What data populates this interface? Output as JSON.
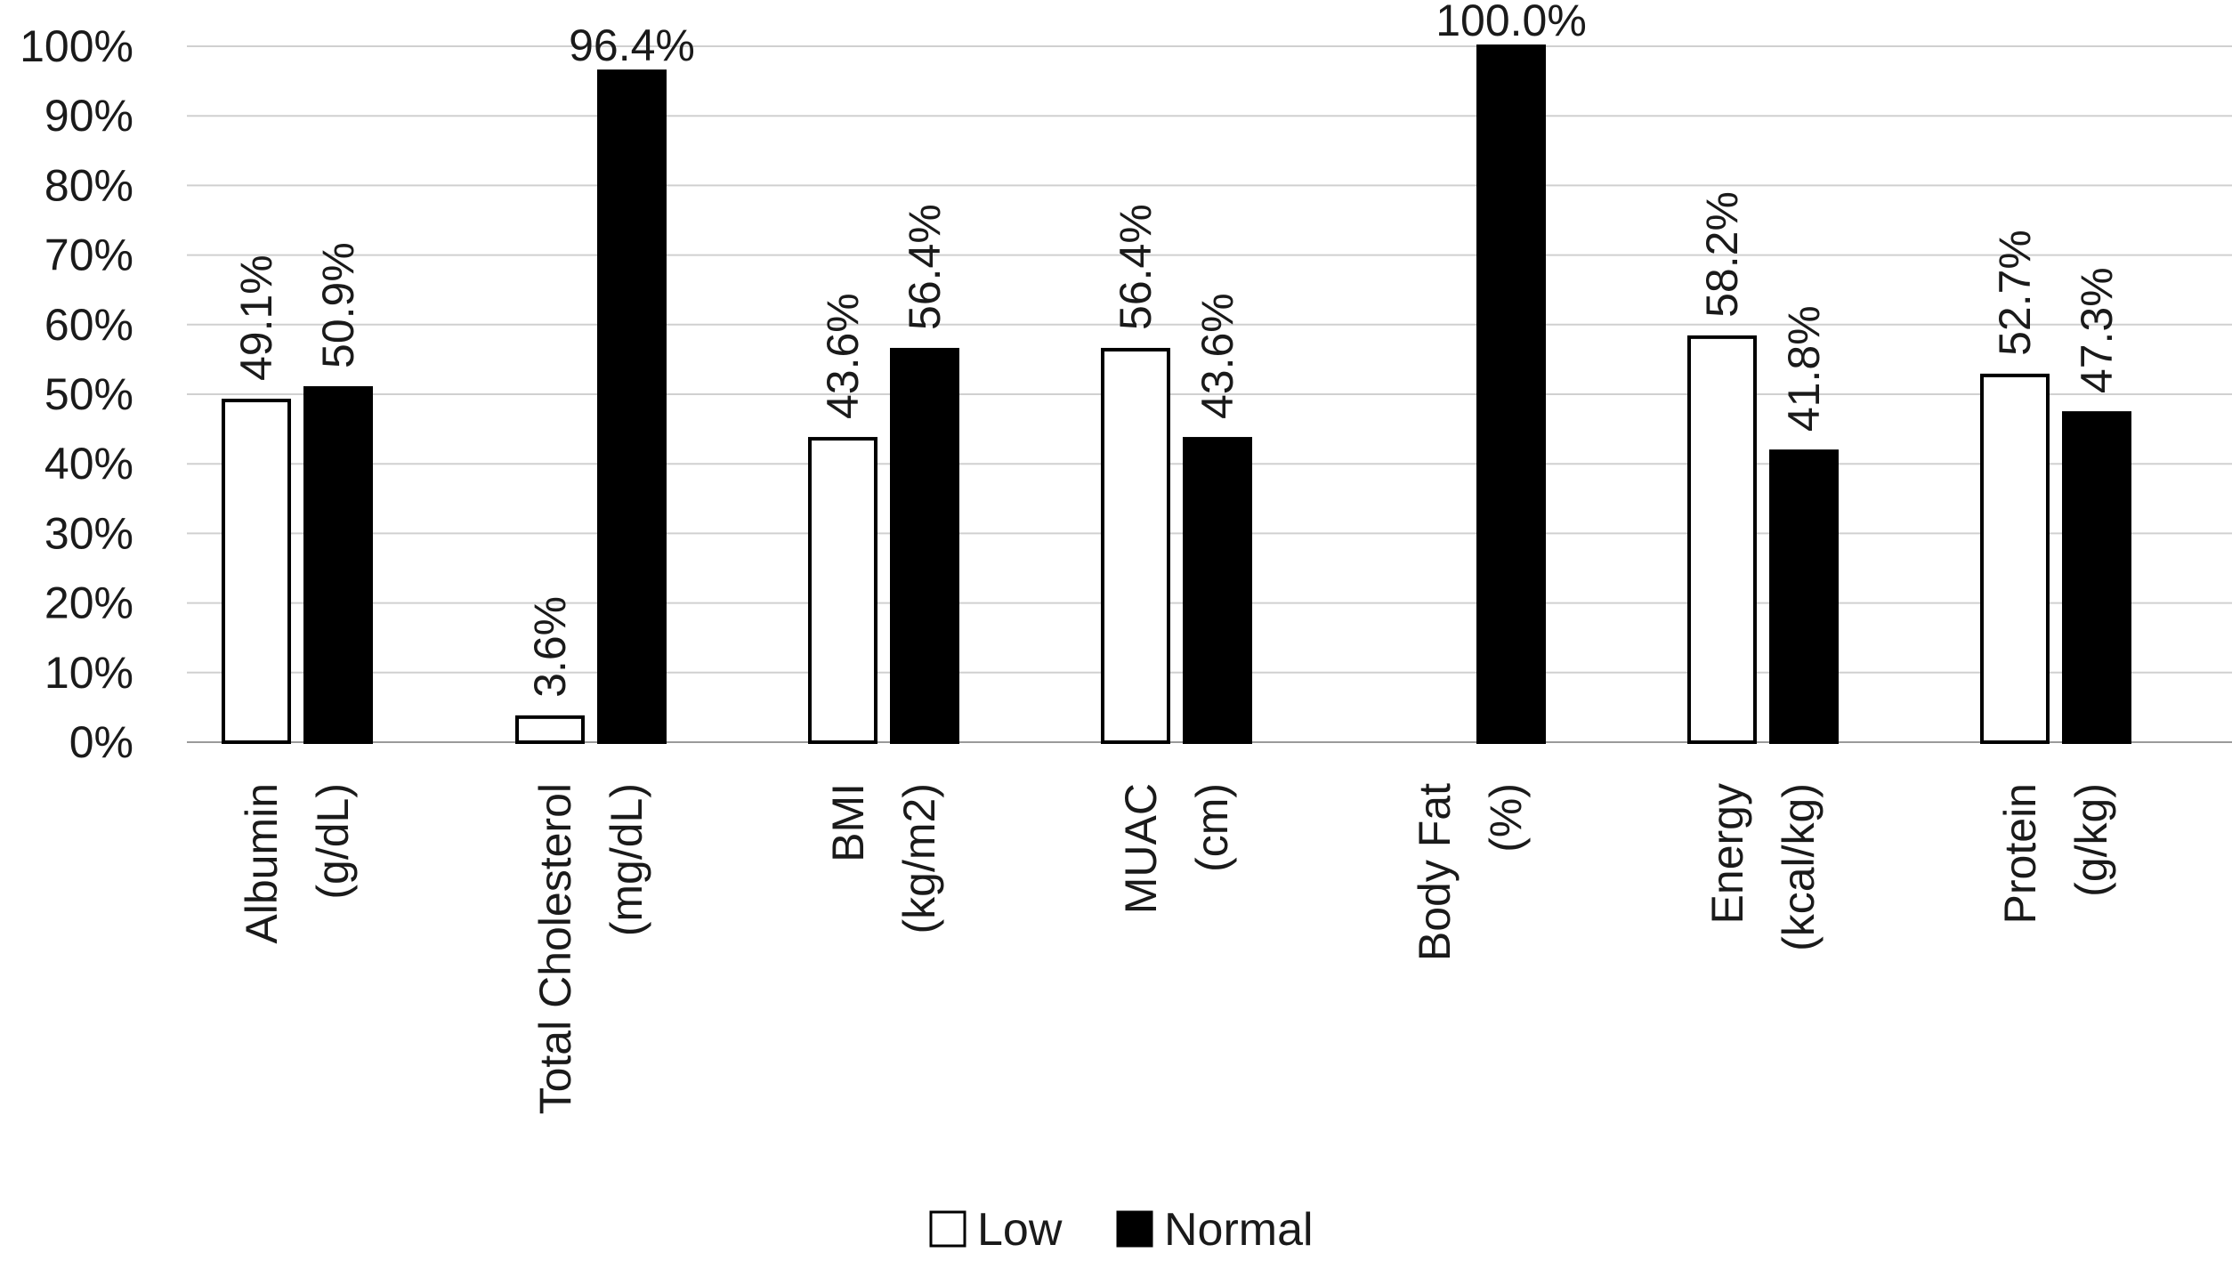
{
  "chart_data": {
    "type": "bar",
    "categories": [
      [
        "Albumin",
        "(g/dL)"
      ],
      [
        "Total Cholesterol",
        "(mg/dL)"
      ],
      [
        "BMI",
        "(kg/m2)"
      ],
      [
        "MUAC",
        "(cm)"
      ],
      [
        "Body Fat",
        "(%)"
      ],
      [
        "Energy",
        "(kcal/kg)"
      ],
      [
        "Protein",
        "(g/kg)"
      ]
    ],
    "series": [
      {
        "name": "Low",
        "color": "#ffffff",
        "values": [
          49.1,
          3.6,
          43.6,
          56.4,
          null,
          58.2,
          52.7
        ],
        "labels": [
          "49.1%",
          "3.6%",
          "43.6%",
          "56.4%",
          "",
          "58.2%",
          "52.7%"
        ]
      },
      {
        "name": "Normal",
        "color": "#000000",
        "values": [
          50.9,
          96.4,
          56.4,
          43.6,
          100.0,
          41.8,
          47.3
        ],
        "labels": [
          "50.9%",
          "96.4%",
          "56.4%",
          "43.6%",
          "100.0%",
          "41.8%",
          "47.3%"
        ]
      }
    ],
    "yticks": [
      "0%",
      "10%",
      "20%",
      "30%",
      "40%",
      "50%",
      "60%",
      "70%",
      "80%",
      "90%",
      "100%"
    ],
    "ylim": [
      0,
      100
    ],
    "grid": true,
    "legend": "bottom-center",
    "title": "",
    "xlabel": "",
    "ylabel": ""
  }
}
